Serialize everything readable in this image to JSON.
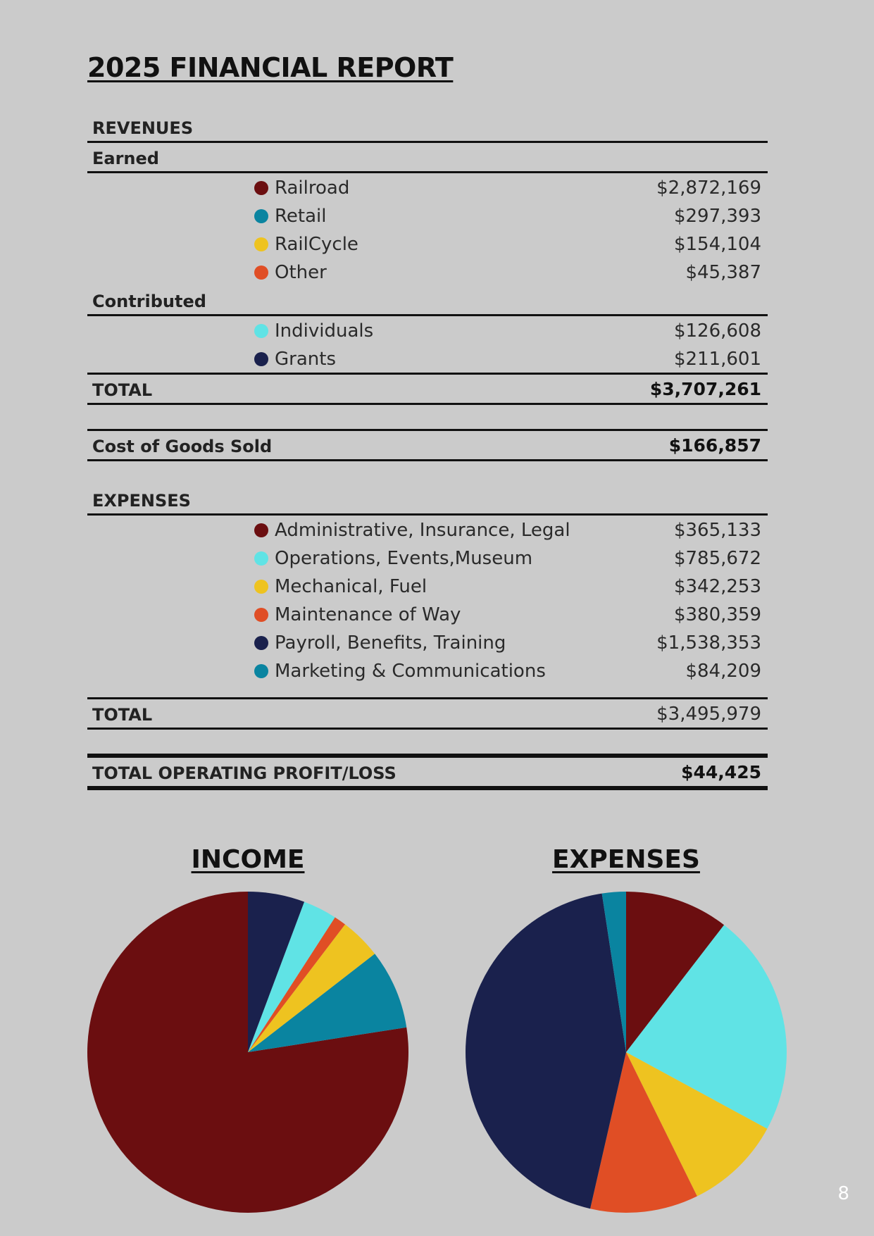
{
  "title": "2025 FINANCIAL REPORT",
  "revenues": {
    "heading": "REVENUES",
    "earned_label": "Earned",
    "earned": [
      {
        "label": "Railroad",
        "amount": "$2,872,169",
        "color": "#6b0e10"
      },
      {
        "label": "Retail",
        "amount": "$297,393",
        "color": "#0a84a0"
      },
      {
        "label": "RailCycle",
        "amount": "$154,104",
        "color": "#eec320"
      },
      {
        "label": "Other",
        "amount": "$45,387",
        "color": "#e04e25"
      }
    ],
    "contributed_label": "Contributed",
    "contributed": [
      {
        "label": "Individuals",
        "amount": "$126,608",
        "color": "#60e3e5"
      },
      {
        "label": "Grants",
        "amount": "$211,601",
        "color": "#1a214d"
      }
    ],
    "total_label": "TOTAL",
    "total": "$3,707,261"
  },
  "cogs": {
    "label": "Cost of Goods Sold",
    "amount": "$166,857"
  },
  "expenses": {
    "heading": "EXPENSES",
    "items": [
      {
        "label": "Administrative, Insurance, Legal",
        "amount": "$365,133",
        "color": "#6b0e10"
      },
      {
        "label": "Operations, Events,Museum",
        "amount": "$785,672",
        "color": "#60e3e5"
      },
      {
        "label": "Mechanical, Fuel",
        "amount": "$342,253",
        "color": "#eec320"
      },
      {
        "label": "Maintenance of Way",
        "amount": "$380,359",
        "color": "#e04e25"
      },
      {
        "label": "Payroll, Benefits, Training",
        "amount": "$1,538,353",
        "color": "#1a214d"
      },
      {
        "label": "Marketing & Communications",
        "amount": "$84,209",
        "color": "#0a84a0"
      }
    ],
    "total_label": "TOTAL",
    "total": "$3,495,979"
  },
  "operating": {
    "label": "TOTAL OPERATING PROFIT/LOSS",
    "amount": "$44,425"
  },
  "page_number": "8",
  "chart_data": [
    {
      "type": "pie",
      "title": "INCOME",
      "categories": [
        "Railroad",
        "Retail",
        "RailCycle",
        "Other",
        "Individuals",
        "Grants"
      ],
      "values": [
        2872169,
        297393,
        154104,
        45387,
        126608,
        211601
      ],
      "colors": [
        "#6b0e10",
        "#0a84a0",
        "#eec320",
        "#e04e25",
        "#60e3e5",
        "#1a214d"
      ],
      "direction": "counterclockwise",
      "start": "top",
      "legend": "none"
    },
    {
      "type": "pie",
      "title": "EXPENSES",
      "categories": [
        "Administrative, Insurance, Legal",
        "Operations, Events,Museum",
        "Mechanical, Fuel",
        "Maintenance of Way",
        "Payroll, Benefits, Training",
        "Marketing & Communications"
      ],
      "values": [
        365133,
        785672,
        342253,
        380359,
        1538353,
        84209
      ],
      "colors": [
        "#6b0e10",
        "#60e3e5",
        "#eec320",
        "#e04e25",
        "#1a214d",
        "#0a84a0"
      ],
      "direction": "clockwise",
      "start": "top",
      "legend": "none"
    }
  ]
}
